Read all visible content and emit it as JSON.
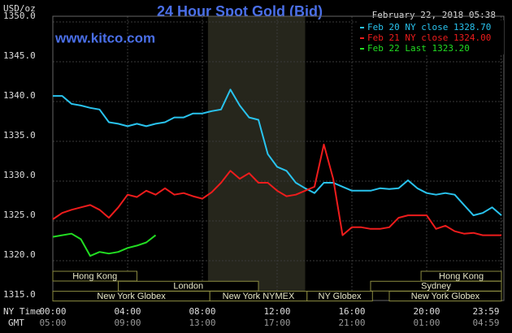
{
  "chart_data": {
    "type": "line",
    "title": "24 Hour Spot Gold (Bid)",
    "y_label": "USD/oz",
    "watermark": "www.kitco.com",
    "timestamp": "February 22, 2018 05:38",
    "x_label": "NY Time",
    "x2_label": "GMT",
    "xlim": [
      0,
      24
    ],
    "xticks": [
      {
        "value": 0,
        "label": "00:00"
      },
      {
        "value": 4,
        "label": "04:00"
      },
      {
        "value": 8,
        "label": "08:00"
      },
      {
        "value": 12,
        "label": "12:00"
      },
      {
        "value": 16,
        "label": "16:00"
      },
      {
        "value": 20,
        "label": "20:00"
      },
      {
        "value": 23.98,
        "label": "23:59"
      }
    ],
    "x2tick_labels": [
      "05:00",
      "09:00",
      "13:00",
      "17:00",
      "21:00",
      "01:00",
      "04:59"
    ],
    "ylim": [
      1315,
      1350
    ],
    "yticks": [
      {
        "value": 1315,
        "label": "1315.0"
      },
      {
        "value": 1320,
        "label": "1320.0"
      },
      {
        "value": 1325,
        "label": "1325.0"
      },
      {
        "value": 1330,
        "label": "1330.0"
      },
      {
        "value": 1335,
        "label": "1335.0"
      },
      {
        "value": 1340,
        "label": "1340.0"
      },
      {
        "value": 1345,
        "label": "1345.0"
      },
      {
        "value": 1350,
        "label": "1350.0"
      }
    ],
    "grid": true,
    "legend": "top-right",
    "highlight": [
      8.3,
      13.5
    ],
    "x": [
      0,
      0.5,
      1,
      1.5,
      2,
      2.5,
      3,
      3.5,
      4,
      4.5,
      5,
      5.5,
      6,
      6.5,
      7,
      7.5,
      8,
      8.5,
      9,
      9.5,
      10,
      10.5,
      11,
      11.5,
      12,
      12.5,
      13,
      13.5,
      14,
      14.5,
      15,
      15.5,
      16,
      16.5,
      17,
      17.5,
      18,
      18.5,
      19,
      19.5,
      20,
      20.5,
      21,
      21.5,
      22,
      22.5,
      23,
      23.5,
      24
    ],
    "series": [
      {
        "name": "Feb 20 NY close 1328.70",
        "color": "#29c3ee",
        "values": [
          1340.7,
          1340.7,
          1339.7,
          1339.5,
          1339.2,
          1339,
          1337.4,
          1337.2,
          1336.9,
          1337.2,
          1336.9,
          1337.2,
          1337.4,
          1338,
          1338,
          1338.5,
          1338.5,
          1338.8,
          1339,
          1341.5,
          1339.5,
          1338,
          1337.7,
          1333.4,
          1331.8,
          1331.3,
          1329.8,
          1329.1,
          1328.5,
          1329.8,
          1329.8,
          1329.3,
          1328.8,
          1328.8,
          1328.8,
          1329.1,
          1329,
          1329.1,
          1330.1,
          1329.1,
          1328.5,
          1328.3,
          1328.5,
          1328.3,
          1327,
          1325.7,
          1326,
          1326.7,
          1325.7
        ]
      },
      {
        "name": "Feb 21 NY close 1324.00",
        "color": "#ee1c1c",
        "values": [
          1325.2,
          1326,
          1326.4,
          1326.7,
          1327,
          1326.4,
          1325.4,
          1326.7,
          1328.3,
          1328,
          1328.8,
          1328.3,
          1329.1,
          1328.3,
          1328.5,
          1328.1,
          1327.8,
          1328.6,
          1329.8,
          1331.3,
          1330.3,
          1331,
          1329.8,
          1329.8,
          1328.8,
          1328.1,
          1328.3,
          1328.8,
          1329.3,
          1334.6,
          1330.3,
          1323.2,
          1324.2,
          1324.2,
          1324,
          1324,
          1324.2,
          1325.4,
          1325.7,
          1325.7,
          1325.7,
          1324,
          1324.4,
          1323.7,
          1323.4,
          1323.5,
          1323.2,
          1323.2,
          1323.2
        ]
      },
      {
        "name": "Feb 22 Last 1323.20",
        "color": "#22dd22",
        "values": [
          1323,
          1323.2,
          1323.4,
          1322.7,
          1320.6,
          1321.1,
          1320.9,
          1321.1,
          1321.6,
          1321.9,
          1322.3,
          1323.2,
          null,
          null,
          null,
          null,
          null,
          null,
          null,
          null,
          null,
          null,
          null,
          null,
          null,
          null,
          null,
          null,
          null,
          null,
          null,
          null,
          null,
          null,
          null,
          null,
          null,
          null,
          null,
          null,
          null,
          null,
          null,
          null,
          null,
          null,
          null,
          null,
          null
        ]
      }
    ],
    "session_rows": [
      [
        {
          "name": "Hong Kong",
          "start": 0,
          "end": 4.5
        },
        {
          "name": "Hong Kong",
          "start": 19.7,
          "end": 24
        }
      ],
      [
        {
          "name": "London",
          "start": 3.5,
          "end": 11
        },
        {
          "name": "Sydney",
          "start": 17,
          "end": 24
        }
      ],
      [
        {
          "name": "New York Globex",
          "start": 0,
          "end": 8.4
        },
        {
          "name": "New York NYMEX",
          "start": 8.4,
          "end": 13.6
        },
        {
          "name": "NY Globex",
          "start": 13.6,
          "end": 17.1
        },
        {
          "name": "New York Globex",
          "start": 18,
          "end": 24
        }
      ]
    ]
  }
}
